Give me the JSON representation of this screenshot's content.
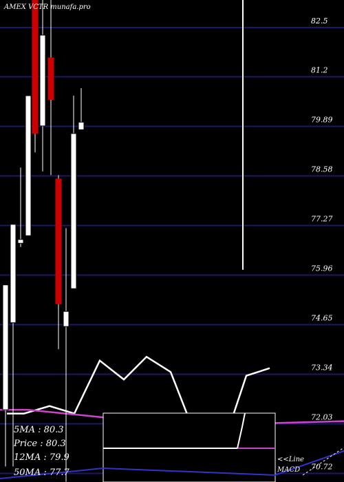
{
  "chart_data": {
    "type": "candlestick",
    "title": "AMEX VCTR munafa.pro",
    "yticks": [
      "82.5",
      "81.2",
      "79.89",
      "78.58",
      "77.27",
      "75.96",
      "74.65",
      "73.34",
      "72.03",
      "70.72"
    ],
    "ylim": [
      70.5,
      83.1
    ],
    "candles": [
      {
        "open": 72.4,
        "close": 75.7,
        "high": 75.7,
        "low": 70.9
      },
      {
        "open": 74.7,
        "close": 77.3,
        "high": 77.3,
        "low": 70.9
      },
      {
        "open": 76.8,
        "close": 76.9,
        "high": 78.8,
        "low": 76.7
      },
      {
        "open": 77.0,
        "close": 80.7,
        "high": 80.7,
        "low": 77.0
      },
      {
        "open": 83.3,
        "close": 79.7,
        "high": 83.5,
        "low": 79.2
      },
      {
        "open": 79.9,
        "close": 82.3,
        "high": 83.5,
        "low": 78.7
      },
      {
        "open": 81.7,
        "close": 80.6,
        "high": 83.5,
        "low": 78.6
      },
      {
        "open": 78.5,
        "close": 75.2,
        "high": 78.6,
        "low": 74.0
      },
      {
        "open": 74.6,
        "close": 75.0,
        "high": 77.2,
        "low": 70.5
      },
      {
        "open": 75.6,
        "close": 79.7,
        "high": 80.7,
        "low": 75.6
      },
      {
        "open": 79.8,
        "close": 80.0,
        "high": 80.9,
        "low": 79.8
      }
    ],
    "vertical_line": {
      "price": 76.1,
      "high": 85.0
    },
    "ma_line": [
      72.4,
      72.6,
      72.8,
      72.4,
      72.6,
      72.9,
      73.1,
      72.7,
      72.8,
      72.4,
      72.4,
      72.4,
      72.4,
      73.2,
      73.3
    ],
    "legend": {
      "ma5": "5MA : 80.3",
      "price": "Price : 80.3",
      "ma12": "12MA : 79.9",
      "ma50": "50MA : 77.7",
      "macd_label": "MACD",
      "line_label": "<<Line"
    },
    "colors": {
      "background": "#000000",
      "grid": "#1a1a66",
      "up": "#ffffff",
      "down": "#cc0000",
      "ma50": "#cc44cc",
      "macd": "#3333cc"
    },
    "grid": true
  }
}
